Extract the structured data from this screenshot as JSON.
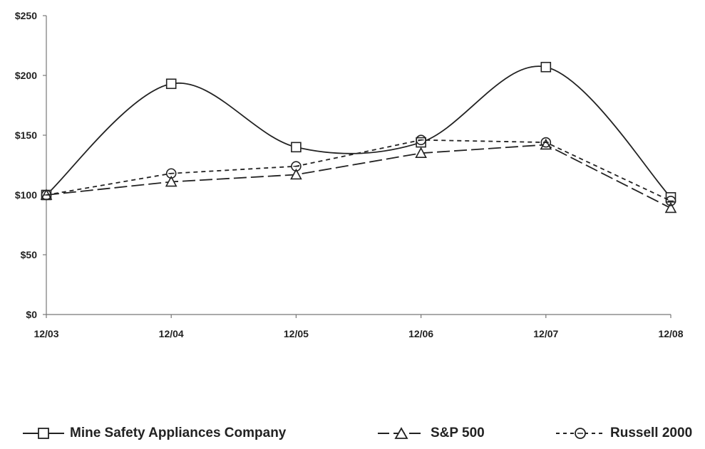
{
  "chart_data": {
    "type": "line",
    "categories": [
      "12/03",
      "12/04",
      "12/05",
      "12/06",
      "12/07",
      "12/08"
    ],
    "y_ticks": [
      "$0",
      "$50",
      "$100",
      "$150",
      "$200",
      "$250"
    ],
    "ylim": [
      0,
      250
    ],
    "title": "",
    "xlabel": "",
    "ylabel": "",
    "grid": false,
    "legend_position": "bottom",
    "series": [
      {
        "name": "Mine Safety Appliances Company",
        "values": [
          100,
          193,
          140,
          144,
          207,
          98
        ],
        "marker": "square",
        "dash": "solid",
        "color": "#222222"
      },
      {
        "name": "S&P 500",
        "values": [
          100,
          111,
          117,
          135,
          142,
          89
        ],
        "marker": "triangle",
        "dash": "long-dash",
        "color": "#222222"
      },
      {
        "name": "Russell 2000",
        "values": [
          100,
          118,
          124,
          146,
          144,
          95
        ],
        "marker": "circle",
        "dash": "short-dash",
        "color": "#222222"
      }
    ]
  }
}
